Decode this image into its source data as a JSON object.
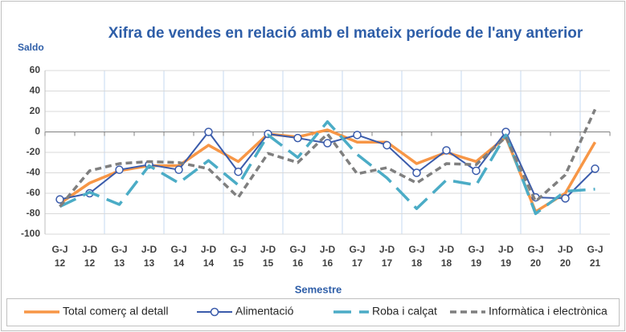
{
  "chart_data": {
    "type": "line",
    "title": "Xifra de vendes en relació amb el mateix període de l'any anterior",
    "y_label": "Saldo",
    "x_label": "Semestre",
    "categories": [
      "G-J 12",
      "J-D 12",
      "G-J 13",
      "J-D 13",
      "G-J 14",
      "J-D 14",
      "G-J 15",
      "J-D 15",
      "G-J 16",
      "J-D 16",
      "G-J 17",
      "J-D 17",
      "G-J 18",
      "J-D 18",
      "G-J 19",
      "J-D 19",
      "G-J 20",
      "J-D 20",
      "G-J 21"
    ],
    "series": [
      {
        "name": "Total comerç al detall",
        "color": "#f79646",
        "dash": "solid",
        "marker": "none",
        "values": [
          -70,
          -50,
          -38,
          -33,
          -33,
          -13,
          -29,
          -2,
          -5,
          2,
          -10,
          -10,
          -31,
          -20,
          -29,
          -5,
          -78,
          -60,
          -10
        ]
      },
      {
        "name": "Alimentació",
        "color": "#3a5bab",
        "dash": "solid",
        "marker": "circle",
        "values": [
          -66,
          -60,
          -37,
          -32,
          -37,
          0,
          -39,
          -2,
          -6,
          -11,
          -3,
          -13,
          -40,
          -18,
          -38,
          0,
          -64,
          -65,
          -36
        ]
      },
      {
        "name": "Roba i calçat",
        "color": "#4bacc6",
        "dash": "long",
        "marker": "none",
        "values": [
          -73,
          -59,
          -71,
          -33,
          -50,
          -28,
          -52,
          -3,
          -25,
          10,
          -22,
          -45,
          -75,
          -47,
          -52,
          -3,
          -80,
          -58,
          -56
        ]
      },
      {
        "name": "Informàtica i electrònica",
        "color": "#7f7f7f",
        "dash": "short",
        "marker": "none",
        "values": [
          -73,
          -38,
          -31,
          -29,
          -30,
          -36,
          -64,
          -21,
          -30,
          -2,
          -41,
          -35,
          -50,
          -31,
          -32,
          -5,
          -68,
          -42,
          22
        ]
      }
    ],
    "ylim": [
      -100,
      60
    ],
    "yticks": [
      -100,
      -80,
      -60,
      -40,
      -20,
      0,
      20,
      40,
      60
    ],
    "grid": true,
    "legend": "bottom"
  }
}
